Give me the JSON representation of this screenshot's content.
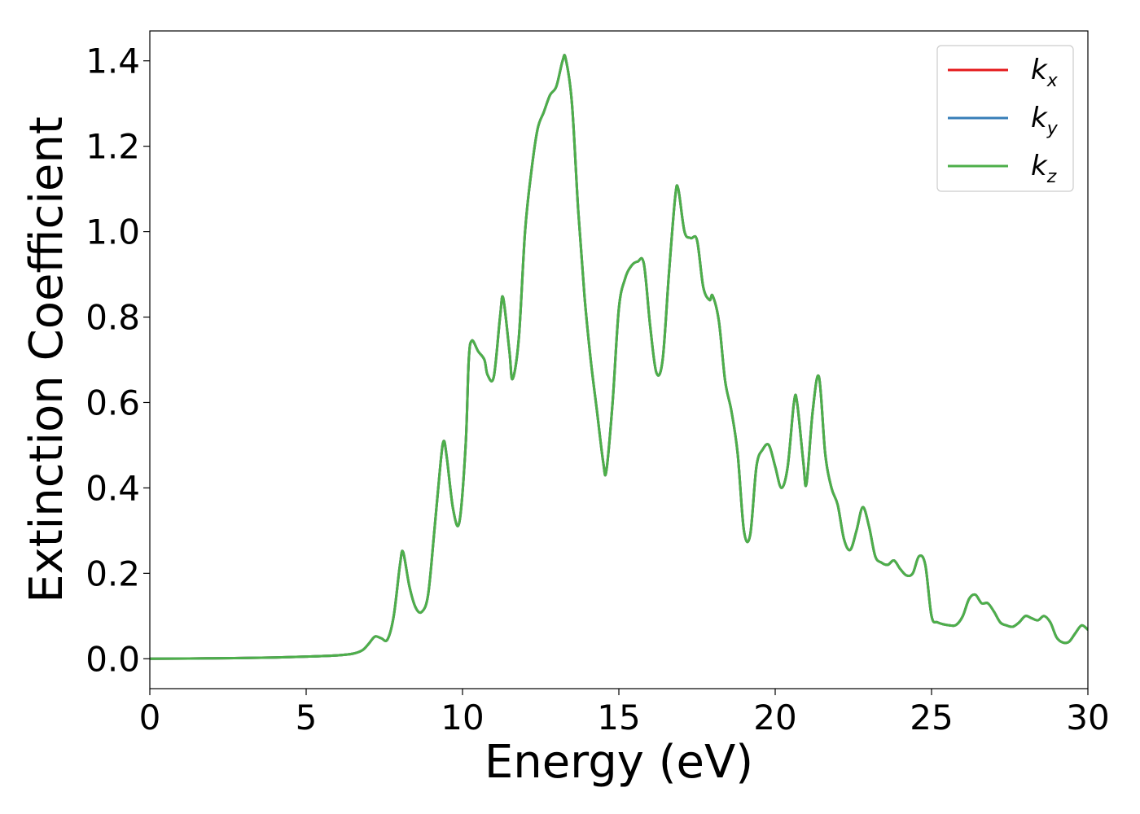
{
  "chart_data": {
    "type": "line",
    "xlabel": "Energy (eV)",
    "ylabel": "Extinction Coefficient",
    "xlim": [
      0,
      30
    ],
    "ylim": [
      -0.07,
      1.47
    ],
    "x_ticks": [
      0,
      5,
      10,
      15,
      20,
      25,
      30
    ],
    "y_ticks": [
      0.0,
      0.2,
      0.4,
      0.6,
      0.8,
      1.0,
      1.2,
      1.4
    ],
    "x_tick_labels": [
      "0",
      "5",
      "10",
      "15",
      "20",
      "25",
      "30"
    ],
    "y_tick_labels": [
      "0.0",
      "0.2",
      "0.4",
      "0.6",
      "0.8",
      "1.0",
      "1.2",
      "1.4"
    ],
    "grid": false,
    "legend": {
      "position": "top-right"
    },
    "series": [
      {
        "name": "k_x",
        "label_base": "k",
        "label_sub": "x",
        "color": "#e41a1c",
        "x": [
          0,
          2,
          4,
          5,
          6,
          6.5,
          6.8,
          7.0,
          7.2,
          7.4,
          7.6,
          7.8,
          8.0,
          8.1,
          8.3,
          8.5,
          8.7,
          8.9,
          9.1,
          9.3,
          9.4,
          9.5,
          9.7,
          9.9,
          10.1,
          10.2,
          10.3,
          10.5,
          10.7,
          10.8,
          11.0,
          11.2,
          11.3,
          11.5,
          11.6,
          11.8,
          12.0,
          12.2,
          12.4,
          12.6,
          12.8,
          13.0,
          13.2,
          13.3,
          13.5,
          13.7,
          13.9,
          14.1,
          14.3,
          14.5,
          14.6,
          14.8,
          15.0,
          15.2,
          15.4,
          15.6,
          15.8,
          16.0,
          16.2,
          16.4,
          16.6,
          16.8,
          16.9,
          17.1,
          17.3,
          17.5,
          17.7,
          17.9,
          18.0,
          18.2,
          18.4,
          18.6,
          18.8,
          19.0,
          19.2,
          19.4,
          19.6,
          19.8,
          20.0,
          20.2,
          20.4,
          20.6,
          20.7,
          20.9,
          21.0,
          21.2,
          21.4,
          21.6,
          21.8,
          22.0,
          22.2,
          22.4,
          22.6,
          22.8,
          23.0,
          23.2,
          23.4,
          23.6,
          23.8,
          24.0,
          24.2,
          24.4,
          24.6,
          24.8,
          25.0,
          25.2,
          25.6,
          25.8,
          26.0,
          26.2,
          26.4,
          26.6,
          26.8,
          27.0,
          27.2,
          27.4,
          27.6,
          27.8,
          28.0,
          28.2,
          28.4,
          28.6,
          28.8,
          29.0,
          29.2,
          29.4,
          29.6,
          29.8,
          30.0
        ],
        "y": [
          0.0,
          0.001,
          0.003,
          0.005,
          0.008,
          0.012,
          0.02,
          0.035,
          0.052,
          0.048,
          0.045,
          0.1,
          0.22,
          0.25,
          0.17,
          0.12,
          0.11,
          0.15,
          0.3,
          0.46,
          0.51,
          0.47,
          0.35,
          0.32,
          0.5,
          0.7,
          0.745,
          0.72,
          0.7,
          0.665,
          0.66,
          0.8,
          0.845,
          0.72,
          0.655,
          0.75,
          1.0,
          1.14,
          1.24,
          1.28,
          1.32,
          1.34,
          1.4,
          1.405,
          1.3,
          1.05,
          0.85,
          0.7,
          0.58,
          0.46,
          0.44,
          0.6,
          0.82,
          0.89,
          0.92,
          0.93,
          0.925,
          0.78,
          0.67,
          0.7,
          0.9,
          1.08,
          1.1,
          1.0,
          0.985,
          0.98,
          0.87,
          0.84,
          0.85,
          0.79,
          0.65,
          0.58,
          0.48,
          0.3,
          0.29,
          0.45,
          0.49,
          0.5,
          0.45,
          0.4,
          0.45,
          0.6,
          0.6,
          0.46,
          0.41,
          0.58,
          0.66,
          0.48,
          0.4,
          0.36,
          0.28,
          0.255,
          0.3,
          0.355,
          0.31,
          0.24,
          0.225,
          0.22,
          0.23,
          0.21,
          0.195,
          0.2,
          0.24,
          0.22,
          0.1,
          0.085,
          0.078,
          0.08,
          0.1,
          0.14,
          0.15,
          0.13,
          0.13,
          0.11,
          0.085,
          0.078,
          0.075,
          0.085,
          0.1,
          0.095,
          0.09,
          0.1,
          0.085,
          0.05,
          0.038,
          0.04,
          0.06,
          0.078,
          0.068
        ]
      },
      {
        "name": "k_y",
        "label_base": "k",
        "label_sub": "y",
        "color": "#377eb8",
        "x": [
          0,
          2,
          4,
          5,
          6,
          6.5,
          6.8,
          7.0,
          7.2,
          7.4,
          7.6,
          7.8,
          8.0,
          8.1,
          8.3,
          8.5,
          8.7,
          8.9,
          9.1,
          9.3,
          9.4,
          9.5,
          9.7,
          9.9,
          10.1,
          10.2,
          10.3,
          10.5,
          10.7,
          10.8,
          11.0,
          11.2,
          11.3,
          11.5,
          11.6,
          11.8,
          12.0,
          12.2,
          12.4,
          12.6,
          12.8,
          13.0,
          13.2,
          13.3,
          13.5,
          13.7,
          13.9,
          14.1,
          14.3,
          14.5,
          14.6,
          14.8,
          15.0,
          15.2,
          15.4,
          15.6,
          15.8,
          16.0,
          16.2,
          16.4,
          16.6,
          16.8,
          16.9,
          17.1,
          17.3,
          17.5,
          17.7,
          17.9,
          18.0,
          18.2,
          18.4,
          18.6,
          18.8,
          19.0,
          19.2,
          19.4,
          19.6,
          19.8,
          20.0,
          20.2,
          20.4,
          20.6,
          20.7,
          20.9,
          21.0,
          21.2,
          21.4,
          21.6,
          21.8,
          22.0,
          22.2,
          22.4,
          22.6,
          22.8,
          23.0,
          23.2,
          23.4,
          23.6,
          23.8,
          24.0,
          24.2,
          24.4,
          24.6,
          24.8,
          25.0,
          25.2,
          25.6,
          25.8,
          26.0,
          26.2,
          26.4,
          26.6,
          26.8,
          27.0,
          27.2,
          27.4,
          27.6,
          27.8,
          28.0,
          28.2,
          28.4,
          28.6,
          28.8,
          29.0,
          29.2,
          29.4,
          29.6,
          29.8,
          30.0
        ],
        "y": [
          0.0,
          0.001,
          0.003,
          0.005,
          0.008,
          0.012,
          0.02,
          0.035,
          0.052,
          0.048,
          0.045,
          0.1,
          0.22,
          0.25,
          0.17,
          0.12,
          0.11,
          0.15,
          0.3,
          0.46,
          0.51,
          0.47,
          0.35,
          0.32,
          0.5,
          0.7,
          0.745,
          0.72,
          0.7,
          0.665,
          0.66,
          0.8,
          0.845,
          0.72,
          0.655,
          0.75,
          1.0,
          1.14,
          1.24,
          1.28,
          1.32,
          1.34,
          1.4,
          1.405,
          1.3,
          1.05,
          0.85,
          0.7,
          0.58,
          0.46,
          0.44,
          0.6,
          0.82,
          0.89,
          0.92,
          0.93,
          0.925,
          0.78,
          0.67,
          0.7,
          0.9,
          1.08,
          1.1,
          1.0,
          0.985,
          0.98,
          0.87,
          0.84,
          0.85,
          0.79,
          0.65,
          0.58,
          0.48,
          0.3,
          0.29,
          0.45,
          0.49,
          0.5,
          0.45,
          0.4,
          0.45,
          0.6,
          0.6,
          0.46,
          0.41,
          0.58,
          0.66,
          0.48,
          0.4,
          0.36,
          0.28,
          0.255,
          0.3,
          0.355,
          0.31,
          0.24,
          0.225,
          0.22,
          0.23,
          0.21,
          0.195,
          0.2,
          0.24,
          0.22,
          0.1,
          0.085,
          0.078,
          0.08,
          0.1,
          0.14,
          0.15,
          0.13,
          0.13,
          0.11,
          0.085,
          0.078,
          0.075,
          0.085,
          0.1,
          0.095,
          0.09,
          0.1,
          0.085,
          0.05,
          0.038,
          0.04,
          0.06,
          0.078,
          0.068
        ]
      },
      {
        "name": "k_z",
        "label_base": "k",
        "label_sub": "z",
        "color": "#4daf4a",
        "x": [
          0,
          2,
          4,
          5,
          6,
          6.5,
          6.8,
          7.0,
          7.2,
          7.4,
          7.6,
          7.8,
          8.0,
          8.1,
          8.3,
          8.5,
          8.7,
          8.9,
          9.1,
          9.3,
          9.4,
          9.5,
          9.7,
          9.9,
          10.1,
          10.2,
          10.3,
          10.5,
          10.7,
          10.8,
          11.0,
          11.2,
          11.3,
          11.5,
          11.6,
          11.8,
          12.0,
          12.2,
          12.4,
          12.6,
          12.8,
          13.0,
          13.2,
          13.3,
          13.5,
          13.7,
          13.9,
          14.1,
          14.3,
          14.5,
          14.6,
          14.8,
          15.0,
          15.2,
          15.4,
          15.6,
          15.8,
          16.0,
          16.2,
          16.4,
          16.6,
          16.8,
          16.9,
          17.1,
          17.3,
          17.5,
          17.7,
          17.9,
          18.0,
          18.2,
          18.4,
          18.6,
          18.8,
          19.0,
          19.2,
          19.4,
          19.6,
          19.8,
          20.0,
          20.2,
          20.4,
          20.6,
          20.7,
          20.9,
          21.0,
          21.2,
          21.4,
          21.6,
          21.8,
          22.0,
          22.2,
          22.4,
          22.6,
          22.8,
          23.0,
          23.2,
          23.4,
          23.6,
          23.8,
          24.0,
          24.2,
          24.4,
          24.6,
          24.8,
          25.0,
          25.2,
          25.6,
          25.8,
          26.0,
          26.2,
          26.4,
          26.6,
          26.8,
          27.0,
          27.2,
          27.4,
          27.6,
          27.8,
          28.0,
          28.2,
          28.4,
          28.6,
          28.8,
          29.0,
          29.2,
          29.4,
          29.6,
          29.8,
          30.0
        ],
        "y": [
          0.0,
          0.001,
          0.003,
          0.005,
          0.008,
          0.012,
          0.02,
          0.035,
          0.052,
          0.048,
          0.045,
          0.1,
          0.22,
          0.25,
          0.17,
          0.12,
          0.11,
          0.15,
          0.3,
          0.46,
          0.51,
          0.47,
          0.35,
          0.32,
          0.5,
          0.7,
          0.745,
          0.72,
          0.7,
          0.665,
          0.66,
          0.8,
          0.845,
          0.72,
          0.655,
          0.75,
          1.0,
          1.14,
          1.24,
          1.28,
          1.32,
          1.34,
          1.4,
          1.405,
          1.3,
          1.05,
          0.85,
          0.7,
          0.58,
          0.46,
          0.44,
          0.6,
          0.82,
          0.89,
          0.92,
          0.93,
          0.925,
          0.78,
          0.67,
          0.7,
          0.9,
          1.08,
          1.1,
          1.0,
          0.985,
          0.98,
          0.87,
          0.84,
          0.85,
          0.79,
          0.65,
          0.58,
          0.48,
          0.3,
          0.29,
          0.45,
          0.49,
          0.5,
          0.45,
          0.4,
          0.45,
          0.6,
          0.6,
          0.46,
          0.41,
          0.58,
          0.66,
          0.48,
          0.4,
          0.36,
          0.28,
          0.255,
          0.3,
          0.355,
          0.31,
          0.24,
          0.225,
          0.22,
          0.23,
          0.21,
          0.195,
          0.2,
          0.24,
          0.22,
          0.1,
          0.085,
          0.078,
          0.08,
          0.1,
          0.14,
          0.15,
          0.13,
          0.13,
          0.11,
          0.085,
          0.078,
          0.075,
          0.085,
          0.1,
          0.095,
          0.09,
          0.1,
          0.085,
          0.05,
          0.038,
          0.04,
          0.06,
          0.078,
          0.068
        ]
      }
    ]
  }
}
